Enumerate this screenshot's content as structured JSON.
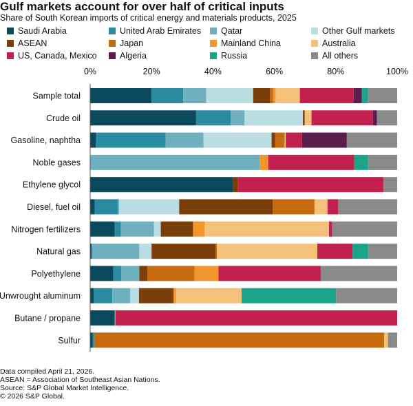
{
  "title": "Gulf markets account for over half of critical inputs",
  "subtitle": "Share of South Korean imports of critical energy and materials products, 2025",
  "notes": [
    "Data compiled April 21, 2026.",
    "ASEAN = Association of Southeast Asian Nations.",
    "Source: S&P Global Market Intelligence.",
    "© 2026 S&P Global."
  ],
  "chart_data": {
    "type": "bar",
    "orientation": "horizontal",
    "stacked": true,
    "x_ticks": [
      "0%",
      "20%",
      "40%",
      "60%",
      "80%",
      "100%"
    ],
    "xlim": [
      0,
      100
    ],
    "legend_position": "top",
    "categories": [
      "Sample total",
      "Crude oil",
      "Gasoline, naphtha",
      "Noble gases",
      "Ethylene glycol",
      "Diesel, fuel oil",
      "Nitrogen fertilizers",
      "Natural gas",
      "Polyethylene",
      "Unwrought aluminum",
      "Butane / propane",
      "Sulfur"
    ],
    "series": [
      {
        "name": "Saudi Arabia",
        "color": "#0a4a5c",
        "values": [
          20.0,
          34.5,
          1.8,
          0,
          46.5,
          1.5,
          8.0,
          0.5,
          7.5,
          1.2,
          8.0,
          0.8
        ]
      },
      {
        "name": "United Arab Emirates",
        "color": "#2a8aa0",
        "values": [
          10.3,
          11.3,
          22.8,
          0,
          0,
          7.5,
          2.0,
          0,
          2.6,
          6.0,
          0,
          0.5
        ]
      },
      {
        "name": "Qatar",
        "color": "#6fb0bf",
        "values": [
          7.5,
          4.5,
          12.3,
          55.2,
          0,
          0.5,
          10.8,
          15.5,
          5.9,
          5.8,
          0.3,
          0
        ]
      },
      {
        "name": "Other Gulf markets",
        "color": "#b9dde2",
        "values": [
          15.3,
          19.0,
          22.2,
          0,
          0,
          19.5,
          2.2,
          4.0,
          0,
          2.9,
          0,
          0
        ]
      },
      {
        "name": "ASEAN",
        "color": "#7a3e0a",
        "values": [
          5.5,
          0.6,
          1.1,
          0,
          1.5,
          30.5,
          10.5,
          20.8,
          2.6,
          11.0,
          0,
          0
        ]
      },
      {
        "name": "Japan",
        "color": "#c56a0f",
        "values": [
          1.0,
          0,
          3.0,
          0,
          0,
          13.5,
          0,
          0.5,
          15.4,
          0.5,
          0,
          94.5
        ]
      },
      {
        "name": "Mainland China",
        "color": "#f0962c",
        "values": [
          0.8,
          0,
          0.3,
          2.8,
          0,
          0.2,
          3.8,
          0,
          7.8,
          0.6,
          0,
          0
        ]
      },
      {
        "name": "Australia",
        "color": "#f4c17b",
        "values": [
          7.9,
          2.2,
          0.2,
          0,
          0,
          4.1,
          40.5,
          32.7,
          0,
          21.3,
          0,
          1.2
        ]
      },
      {
        "name": "US, Canada, Mexico",
        "color": "#c2214f",
        "values": [
          17.5,
          20.0,
          5.3,
          28.0,
          47.5,
          3.5,
          1.0,
          11.5,
          33.3,
          0,
          91.7,
          0
        ]
      },
      {
        "name": "Algeria",
        "color": "#5a1d4e",
        "values": [
          2.7,
          1.3,
          14.6,
          0,
          0,
          0,
          0,
          0,
          0,
          0,
          0,
          0
        ]
      },
      {
        "name": "Russia",
        "color": "#1aa58a",
        "values": [
          2.0,
          0,
          0,
          4.5,
          0,
          0,
          0,
          5.0,
          0,
          30.8,
          0,
          0
        ]
      },
      {
        "name": "All others",
        "color": "#8a8a8a",
        "values": [
          9.5,
          6.6,
          16.4,
          9.5,
          4.5,
          19.2,
          21.2,
          9.5,
          24.9,
          19.9,
          0,
          3.0
        ]
      }
    ]
  }
}
